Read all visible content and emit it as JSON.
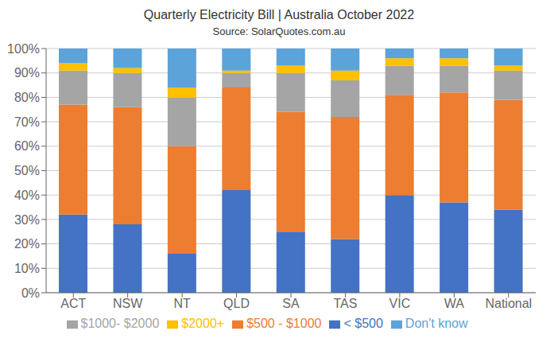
{
  "chart_data": {
    "type": "bar",
    "title": "Quarterly Electricity Bill | Australia October 2022",
    "subtitle": "Source: SolarQuotes.com.au",
    "categories": [
      "ACT",
      "NSW",
      "NT",
      "QLD",
      "SA",
      "TAS",
      "VIC",
      "WA",
      "National"
    ],
    "series": [
      {
        "name": "< $500",
        "color": "#4472C4",
        "values": [
          32,
          28,
          16,
          42,
          25,
          22,
          40,
          37,
          34
        ]
      },
      {
        "name": "$500 - $1000",
        "color": "#ED7D31",
        "values": [
          45,
          48,
          44,
          42,
          49,
          50,
          41,
          45,
          45
        ]
      },
      {
        "name": "$1000- $2000",
        "color": "#A5A5A5",
        "values": [
          14,
          14,
          20,
          6,
          16,
          15,
          12,
          11,
          12
        ]
      },
      {
        "name": "$2000+",
        "color": "#FFC000",
        "values": [
          3,
          2,
          4,
          1,
          3,
          4,
          3,
          3,
          2
        ]
      },
      {
        "name": "Don't know",
        "color": "#5BA3D9",
        "values": [
          6,
          8,
          16,
          9,
          7,
          9,
          4,
          4,
          7
        ]
      }
    ],
    "ylim": [
      0,
      100
    ],
    "yticks": [
      {
        "value": 0,
        "label": "0%"
      },
      {
        "value": 10,
        "label": "10%"
      },
      {
        "value": 20,
        "label": "20%"
      },
      {
        "value": 30,
        "label": "30%"
      },
      {
        "value": 40,
        "label": "40%"
      },
      {
        "value": 50,
        "label": "50%"
      },
      {
        "value": 60,
        "label": "60%"
      },
      {
        "value": 70,
        "label": "70%"
      },
      {
        "value": 80,
        "label": "80%"
      },
      {
        "value": 90,
        "label": "90%"
      },
      {
        "value": 100,
        "label": "100%"
      }
    ],
    "grid": true,
    "stacked": true,
    "legend": "bottom"
  }
}
